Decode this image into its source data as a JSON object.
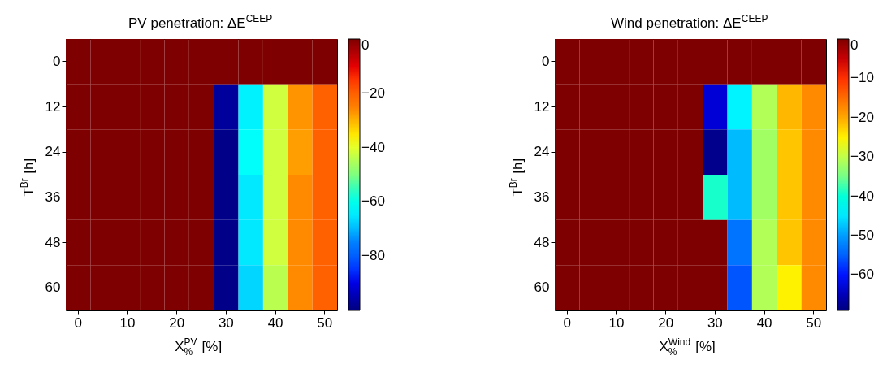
{
  "chart_data": [
    {
      "type": "heatmap",
      "title": "PV penetration: ΔE$^{CEEP}$",
      "xlabel": "X$_{%}$$^{PV}$ [%]",
      "ylabel": "T$^{Br}$ [h]",
      "categories": [
        "0",
        null,
        "10",
        null,
        "20",
        null,
        "30",
        null,
        "40",
        null,
        "50"
      ],
      "y_categories": [
        "0",
        "12",
        "24",
        "36",
        "48",
        "60"
      ],
      "cells": [
        [
          0,
          0,
          0,
          0,
          0,
          0,
          0,
          0,
          0,
          0,
          0
        ],
        [
          0,
          0,
          0,
          0,
          0,
          0,
          -97,
          -64,
          -42,
          -27,
          -20
        ],
        [
          0,
          0,
          0,
          0,
          0,
          0,
          -99,
          -62,
          -42,
          -28,
          -20
        ],
        [
          0,
          0,
          0,
          0,
          0,
          0,
          -99,
          -65,
          -42,
          -26,
          -20
        ],
        [
          0,
          0,
          0,
          0,
          0,
          0,
          -99,
          -65,
          -42,
          -26,
          -20
        ],
        [
          0,
          0,
          0,
          0,
          0,
          0,
          -99,
          -67,
          -44,
          -26,
          -20
        ]
      ],
      "clim": [
        -100,
        0
      ],
      "cticks": [
        -80,
        -60,
        -40,
        -20,
        0
      ]
    },
    {
      "type": "heatmap",
      "title": "Wind penetration: ΔE$^{CEEP}$",
      "xlabel": "X$_{%}$$^{Wind}$ [%]",
      "ylabel": "T$^{Br}$ [h]",
      "categories": [
        "0",
        null,
        "10",
        null,
        "20",
        null,
        "30",
        null,
        "40",
        null,
        "50"
      ],
      "y_categories": [
        "0",
        "12",
        "24",
        "36",
        "48",
        "60"
      ],
      "cells": [
        [
          0,
          0,
          0,
          0,
          0,
          0,
          0,
          0,
          0,
          0,
          0
        ],
        [
          0,
          0,
          0,
          0,
          0,
          0,
          -63,
          -44,
          -31,
          -21,
          -18
        ],
        [
          0,
          0,
          0,
          0,
          0,
          0,
          -68,
          -48,
          -32,
          -22,
          -18
        ],
        [
          0,
          0,
          0,
          0,
          0,
          0,
          -39,
          -48,
          -32,
          -22,
          -18
        ],
        [
          0,
          0,
          0,
          0,
          0,
          0,
          0,
          -53,
          -31,
          -22,
          -18
        ],
        [
          0,
          0,
          0,
          0,
          0,
          0,
          0,
          -56,
          -31,
          -25,
          -18
        ]
      ],
      "clim": [
        -69,
        0
      ],
      "cticks": [
        -60,
        -50,
        -40,
        -30,
        -20,
        -10,
        0
      ]
    }
  ]
}
